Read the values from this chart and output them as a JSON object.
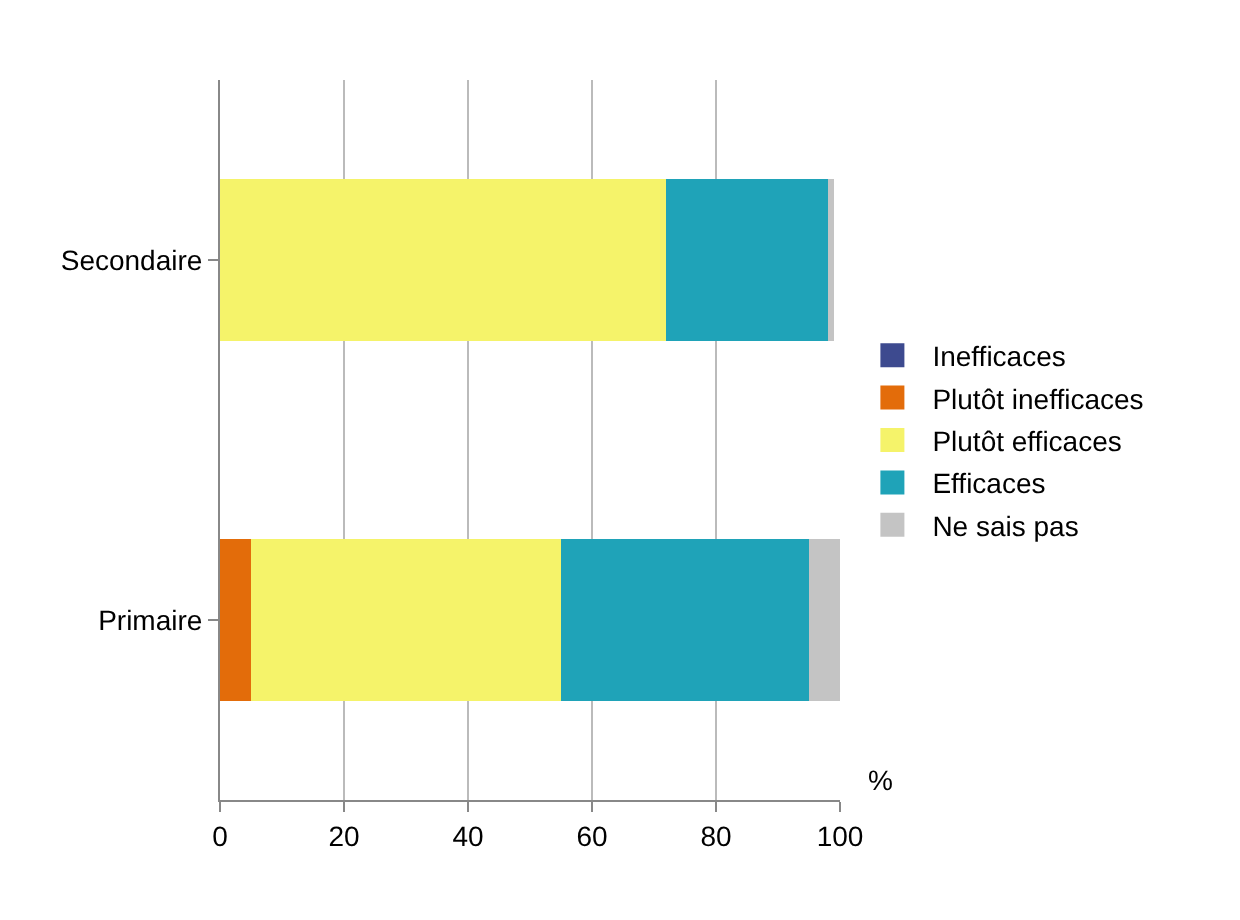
{
  "chart_data": {
    "type": "bar",
    "orientation": "horizontal",
    "stacked": true,
    "xlabel": "%",
    "categories": [
      "Secondaire",
      "Primaire"
    ],
    "series": [
      {
        "name": "Inefficaces",
        "color": "#3d4a8f",
        "values": [
          0,
          0
        ]
      },
      {
        "name": "Plutôt inefficaces",
        "color": "#e36c0a",
        "values": [
          0,
          5
        ]
      },
      {
        "name": "Plutôt efficaces",
        "color": "#f5f36a",
        "values": [
          72,
          50
        ]
      },
      {
        "name": "Efficaces",
        "color": "#1fa3b8",
        "values": [
          26,
          40
        ]
      },
      {
        "name": "Ne sais pas",
        "color": "#c4c4c4",
        "values": [
          1,
          5
        ]
      }
    ],
    "xlim": [
      0,
      100
    ],
    "xticks": [
      0,
      20,
      40,
      60,
      80,
      100
    ],
    "grid": "x",
    "legend": "right"
  }
}
